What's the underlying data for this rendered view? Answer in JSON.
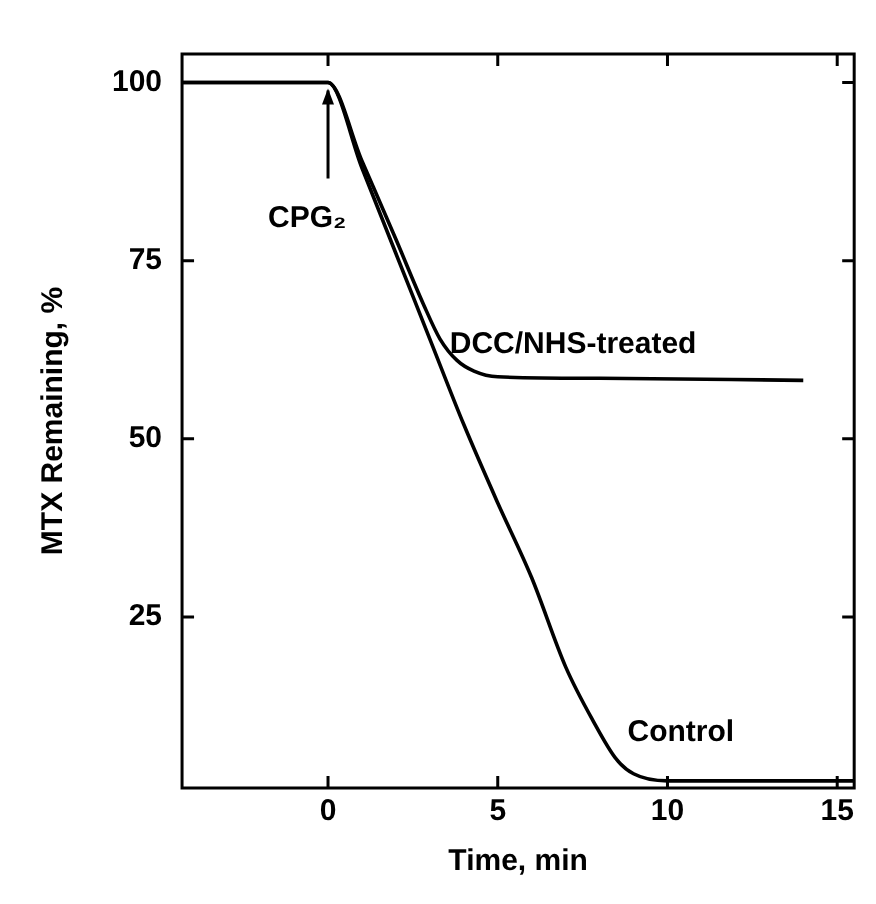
{
  "chart_data": {
    "type": "line",
    "xlabel": "Time, min",
    "ylabel": "MTX Remaining, %",
    "xlim": [
      -4.3,
      15.5
    ],
    "xticks": [
      0,
      5,
      10,
      15
    ],
    "ylim": [
      1,
      104
    ],
    "yticks": [
      25,
      50,
      75,
      100
    ],
    "grid": false,
    "legend": false,
    "marker": "none",
    "line_style": "solid",
    "annotations": [
      {
        "text": "CPG₂",
        "x": 0,
        "y": 100
      }
    ],
    "series": [
      {
        "name": "DCC/NHS-treated",
        "color": "#000000",
        "x": [
          -4.3,
          0,
          1,
          2,
          2.8,
          3.3,
          3.8,
          4.3,
          5,
          8,
          14
        ],
        "values": [
          100,
          100,
          89,
          78,
          69,
          64,
          61,
          59.5,
          58.7,
          58.5,
          58.2
        ]
      },
      {
        "name": "Control",
        "color": "#000000",
        "x": [
          -4.3,
          0,
          1,
          2,
          3,
          4,
          5,
          6,
          7,
          7.8,
          8.5,
          9,
          10,
          15.5
        ],
        "values": [
          100,
          100,
          88,
          76,
          64,
          52,
          41,
          30.5,
          18,
          10.5,
          5,
          3,
          2,
          2
        ]
      }
    ]
  }
}
